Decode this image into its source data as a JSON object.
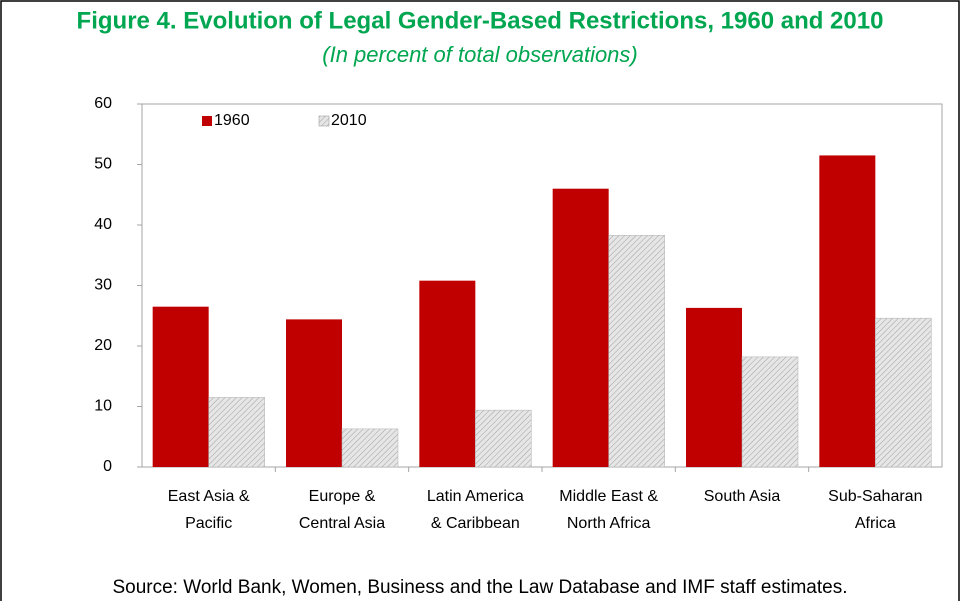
{
  "chart_data": {
    "type": "bar",
    "title": "Figure 4. Evolution of Legal Gender-Based Restrictions, 1960 and 2010",
    "subtitle": "(In percent of total observations)",
    "categories": [
      [
        "East Asia &",
        "Pacific"
      ],
      [
        "Europe &",
        "Central Asia"
      ],
      [
        "Latin America",
        "& Caribbean"
      ],
      [
        "Middle East &",
        "North Africa"
      ],
      [
        "South Asia"
      ],
      [
        "Sub-Saharan",
        "Africa"
      ]
    ],
    "series": [
      {
        "name": "1960",
        "color": "#c00000",
        "values": [
          26.5,
          24.4,
          30.8,
          46,
          26.3,
          51.5
        ]
      },
      {
        "name": "2010",
        "color": "#d0d0d0",
        "values": [
          11.5,
          6.3,
          9.4,
          38.3,
          18.2,
          24.6
        ]
      }
    ],
    "ylim": [
      0,
      60
    ],
    "yticks": [
      0,
      10,
      20,
      30,
      40,
      50,
      60
    ],
    "legend": "top-left",
    "source": "Source: World Bank, Women, Business and the Law Database and IMF staff estimates."
  }
}
